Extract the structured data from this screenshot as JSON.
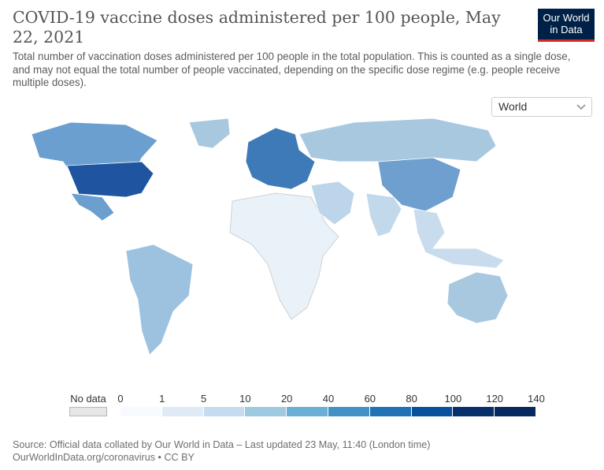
{
  "header": {
    "title": "COVID-19 vaccine doses administered per 100 people, May 22, 2021",
    "subtitle": "Total number of vaccination doses administered per 100 people in the total population. This is counted as a single dose, and may not equal the total number of people vaccinated, depending on the specific dose regime (e.g. people receive multiple doses)."
  },
  "logo": {
    "line1": "Our World",
    "line2": "in Data"
  },
  "region_select": {
    "value": "World"
  },
  "legend": {
    "no_data_label": "No data",
    "no_data_color": "#e6e6e6",
    "ticks": [
      "0",
      "1",
      "5",
      "10",
      "20",
      "40",
      "60",
      "80",
      "100",
      "120",
      "140"
    ],
    "colors": [
      "#f7fbff",
      "#deebf7",
      "#c6dbef",
      "#9ecae1",
      "#6baed6",
      "#4292c6",
      "#2171b5",
      "#08519c",
      "#08306b",
      "#062a5e"
    ]
  },
  "map": {
    "type": "choropleth",
    "projection": "world",
    "regions": [
      {
        "name": "North America",
        "color": "#6a9fcf"
      },
      {
        "name": "United States",
        "color": "#1f55a0"
      },
      {
        "name": "Greenland",
        "color": "#a8c8e0"
      },
      {
        "name": "South America",
        "color": "#9cc2e0"
      },
      {
        "name": "Europe",
        "color": "#3f7ab8"
      },
      {
        "name": "Russia",
        "color": "#a8c8e0"
      },
      {
        "name": "Africa",
        "color": "#e9f1f9"
      },
      {
        "name": "Middle East",
        "color": "#bcd5ea"
      },
      {
        "name": "China",
        "color": "#6e9fcf"
      },
      {
        "name": "India",
        "color": "#c2d9ec"
      },
      {
        "name": "Southeast Asia",
        "color": "#c8dcee"
      },
      {
        "name": "Australia",
        "color": "#a8c8e0"
      }
    ]
  },
  "source": {
    "line1": "Source: Official data collated by Our World in Data – Last updated 23 May, 11:40 (London time)",
    "line2": "OurWorldInData.org/coronavirus • CC BY"
  }
}
